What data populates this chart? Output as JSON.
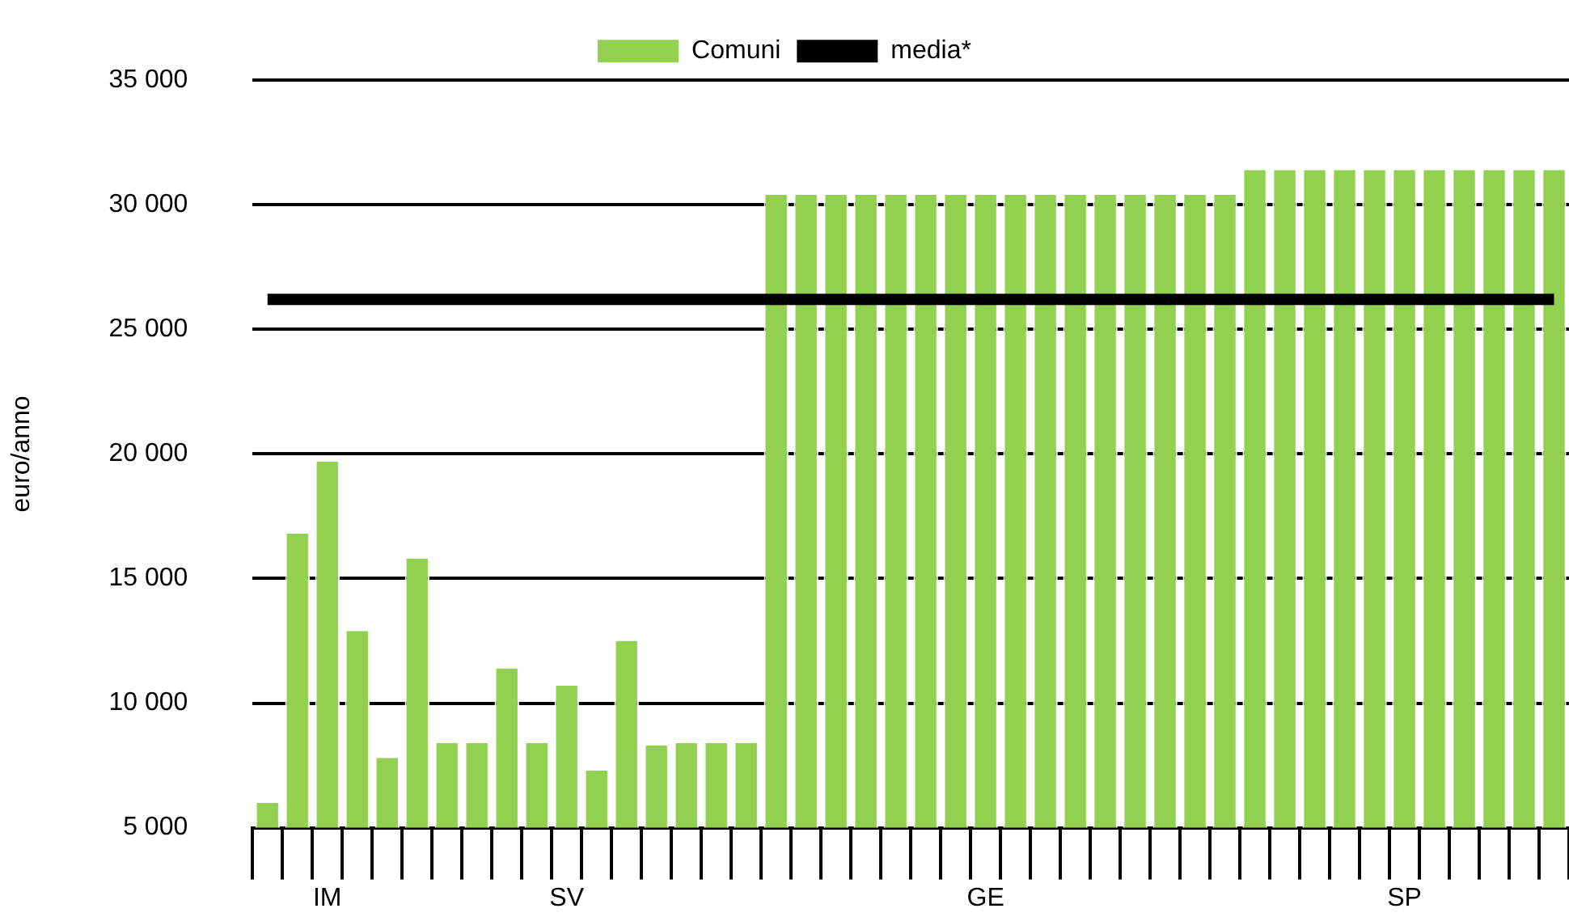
{
  "chart_data": {
    "type": "bar",
    "ylabel": "euro/anno",
    "categories": [
      null,
      null,
      "IM",
      null,
      null,
      null,
      null,
      null,
      null,
      null,
      "SV",
      null,
      null,
      null,
      null,
      null,
      null,
      null,
      null,
      null,
      null,
      null,
      null,
      null,
      "GE",
      null,
      null,
      null,
      null,
      null,
      null,
      null,
      null,
      null,
      null,
      null,
      null,
      null,
      "SP",
      null,
      null,
      null,
      null,
      null
    ],
    "series": [
      {
        "name": "Comuni",
        "color": "#92d050",
        "values": [
          6000,
          16800,
          19700,
          12900,
          7800,
          15800,
          8400,
          8400,
          11400,
          8400,
          10700,
          7300,
          12500,
          8300,
          8400,
          8400,
          8400,
          30400,
          30400,
          30400,
          30400,
          30400,
          30400,
          30400,
          30400,
          30400,
          30400,
          30400,
          30400,
          30400,
          30400,
          30400,
          30400,
          31400,
          31400,
          31400,
          31400,
          31400,
          31400,
          31400,
          31400,
          31400,
          31400,
          31400
        ]
      },
      {
        "name": "media*",
        "type": "line",
        "color": "#000000",
        "values": [
          26200,
          26200,
          26200,
          26200,
          26200,
          26200,
          26200,
          26200,
          26200,
          26200,
          26200,
          26200,
          26200,
          26200,
          26200,
          26200,
          26200,
          26200,
          26200,
          26200,
          26200,
          26200,
          26200,
          26200,
          26200,
          26200,
          26200,
          26200,
          26200,
          26200,
          26200,
          26200,
          26200,
          26200,
          26200,
          26200,
          26200,
          26200,
          26200,
          26200,
          26200,
          26200,
          26200,
          26200
        ]
      }
    ],
    "ylim": [
      5000,
      35000
    ],
    "yticks": [
      {
        "value": 5000,
        "label": "5 000"
      },
      {
        "value": 10000,
        "label": "10 000"
      },
      {
        "value": 15000,
        "label": "15 000"
      },
      {
        "value": 20000,
        "label": "20 000"
      },
      {
        "value": 25000,
        "label": "25 000"
      },
      {
        "value": 30000,
        "label": "30 000"
      },
      {
        "value": 35000,
        "label": "35 000"
      }
    ],
    "grid": "y",
    "legend": "top"
  }
}
